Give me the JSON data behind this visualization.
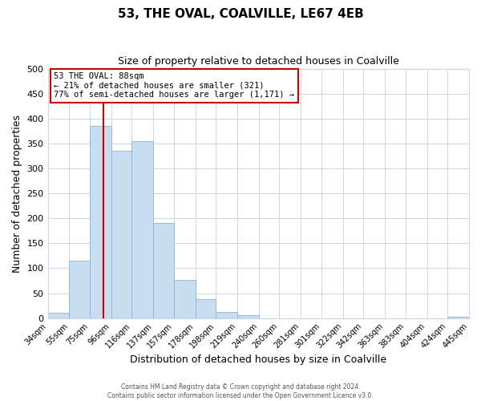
{
  "title": "53, THE OVAL, COALVILLE, LE67 4EB",
  "subtitle": "Size of property relative to detached houses in Coalville",
  "xlabel": "Distribution of detached houses by size in Coalville",
  "ylabel": "Number of detached properties",
  "bar_color": "#c8ddf0",
  "bar_edge_color": "#8ab4d4",
  "grid_color": "#c8d8e8",
  "background_color": "#ffffff",
  "bins": [
    34,
    55,
    75,
    96,
    116,
    137,
    157,
    178,
    198,
    219,
    240,
    260,
    281,
    301,
    322,
    342,
    363,
    383,
    404,
    424,
    445
  ],
  "bin_labels": [
    "34sqm",
    "55sqm",
    "75sqm",
    "96sqm",
    "116sqm",
    "137sqm",
    "157sqm",
    "178sqm",
    "198sqm",
    "219sqm",
    "240sqm",
    "260sqm",
    "281sqm",
    "301sqm",
    "322sqm",
    "342sqm",
    "363sqm",
    "383sqm",
    "404sqm",
    "424sqm",
    "445sqm"
  ],
  "values": [
    10,
    115,
    385,
    335,
    355,
    190,
    76,
    38,
    12,
    6,
    0,
    0,
    0,
    0,
    0,
    0,
    0,
    0,
    0,
    3
  ],
  "ylim": [
    0,
    500
  ],
  "yticks": [
    0,
    50,
    100,
    150,
    200,
    250,
    300,
    350,
    400,
    450,
    500
  ],
  "property_line_x": 88,
  "property_line_color": "#cc0000",
  "annotation_text_line1": "53 THE OVAL: 88sqm",
  "annotation_text_line2": "← 21% of detached houses are smaller (321)",
  "annotation_text_line3": "77% of semi-detached houses are larger (1,171) →",
  "annotation_box_color": "#cc0000",
  "footer_line1": "Contains HM Land Registry data © Crown copyright and database right 2024.",
  "footer_line2": "Contains public sector information licensed under the Open Government Licence v3.0."
}
